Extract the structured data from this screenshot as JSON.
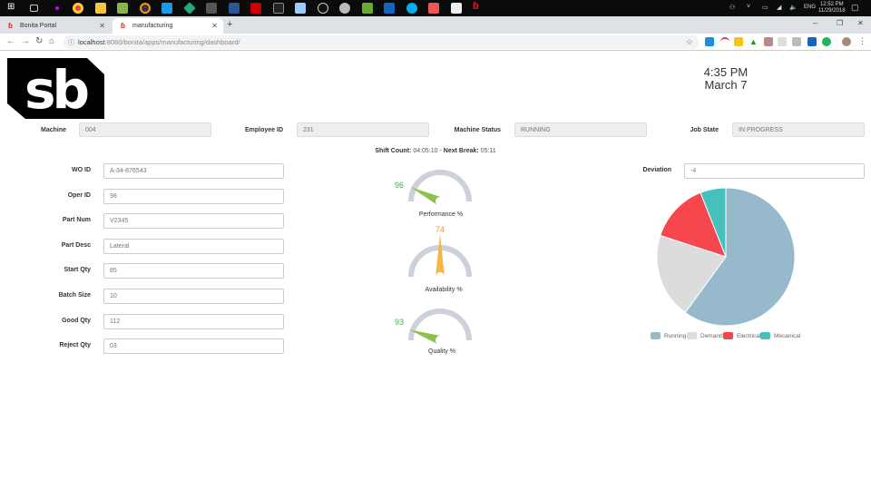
{
  "taskbar": {
    "time": "12:52 PM",
    "date": "11/29/2018",
    "lang": "ENG"
  },
  "browser": {
    "tabs": [
      {
        "label": "Bonita Portal"
      },
      {
        "label": "manufacturing"
      }
    ],
    "url_host": "localhost",
    "url_rest": ":8080/bonita/apps/manufacturing/dashboard/"
  },
  "header": {
    "logo": "sb",
    "time": "4:35 PM",
    "date": "March 7"
  },
  "status_row": [
    {
      "label": "Machine",
      "value": "004"
    },
    {
      "label": "Employee ID",
      "value": "231"
    },
    {
      "label": "Machine Status",
      "value": "RUNNING"
    },
    {
      "label": "Job State",
      "value": "IN PROGRESS"
    }
  ],
  "shift": {
    "count_label": "Shift Count:",
    "count": "04:05:10",
    "separator": " - ",
    "break_label": "Next Break:",
    "break": "05:11"
  },
  "work_order": [
    {
      "label": "WO ID",
      "value": "A-34-876543"
    },
    {
      "label": "Oper ID",
      "value": "98"
    },
    {
      "label": "Part Num",
      "value": "V2345"
    },
    {
      "label": "Part Desc",
      "value": "Lateral"
    },
    {
      "label": "Start Qty",
      "value": "85"
    },
    {
      "label": "Batch Size",
      "value": "10"
    },
    {
      "label": "Good Qty",
      "value": "112"
    },
    {
      "label": "Reject Qty",
      "value": "03"
    }
  ],
  "gauges": [
    {
      "label": "Performance %",
      "value": 96,
      "color": "#8bc34a",
      "text_color": "#4caf50"
    },
    {
      "label": "Availability %",
      "value": 74,
      "color": "#f4b942",
      "text_color": "#f0954a"
    },
    {
      "label": "Quality %",
      "value": 93,
      "color": "#8bc34a",
      "text_color": "#4caf50"
    }
  ],
  "deviation": {
    "label": "Deviation",
    "value": "-4"
  },
  "chart_data": {
    "type": "pie",
    "categories": [
      "Running",
      "Demand",
      "Electrical",
      "Mecanical"
    ],
    "values": [
      60,
      20,
      14,
      6
    ],
    "colors": [
      "#97b9cc",
      "#dcdcdc",
      "#f7474e",
      "#46c0bd"
    ],
    "legend": "bottom"
  }
}
